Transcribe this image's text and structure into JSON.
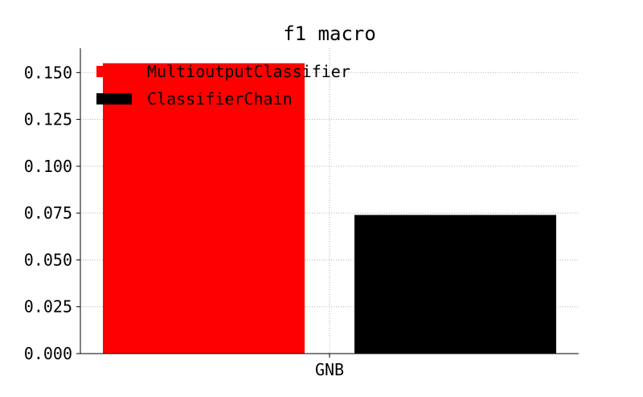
{
  "chart_data": {
    "type": "bar",
    "title": "f1 macro",
    "categories": [
      "GNB"
    ],
    "series": [
      {
        "name": "MultioutputClassifier",
        "values": [
          0.155
        ],
        "color": "#ff0000"
      },
      {
        "name": "ClassifierChain",
        "values": [
          0.074
        ],
        "color": "#000000"
      }
    ],
    "ylim": [
      0,
      0.163
    ],
    "yticks": [
      "0.000",
      "0.025",
      "0.050",
      "0.075",
      "0.100",
      "0.125",
      "0.150"
    ],
    "grid": true,
    "legend_position": "top-left"
  }
}
